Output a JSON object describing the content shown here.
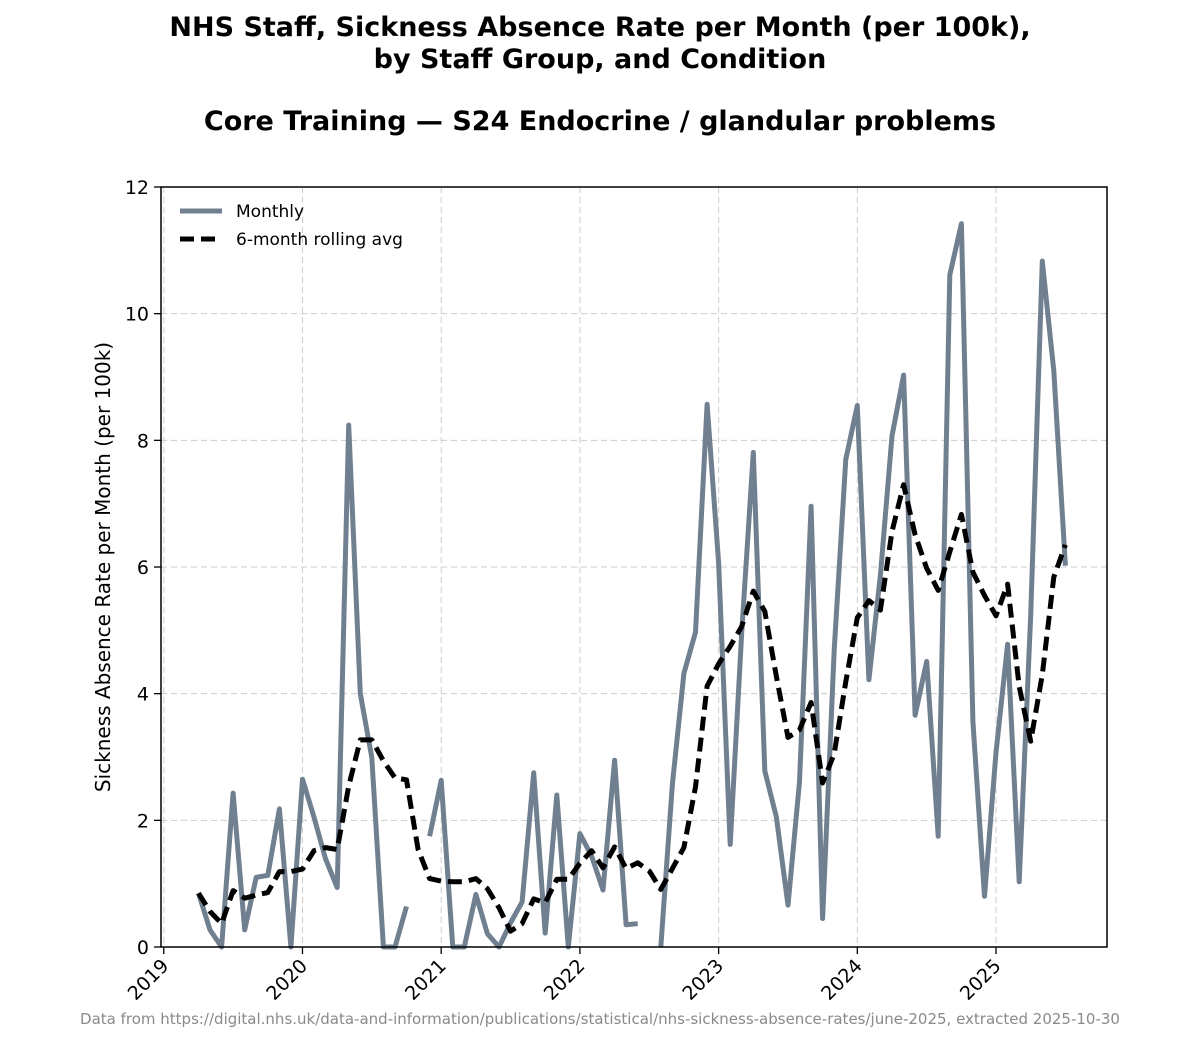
{
  "title_line1": "NHS Staff, Sickness Absence Rate per Month (per 100k),",
  "title_line2": "by Staff Group, and Condition",
  "subtitle": "Core Training — S24 Endocrine / glandular problems",
  "footer": "Data from https://digital.nhs.uk/data-and-information/publications/statistical/nhs-sickness-absence-rates/june-2025, extracted 2025-10-30",
  "chart_data": {
    "type": "line",
    "title": "NHS Staff, Sickness Absence Rate per Month (per 100k), by Staff Group, and Condition",
    "subtitle": "Core Training — S24 Endocrine / glandular problems",
    "xlabel": "",
    "ylabel": "Sickness Absence Rate per Month (per 100k)",
    "ylim": [
      0,
      12
    ],
    "yticks": [
      0,
      2,
      4,
      6,
      8,
      10,
      12
    ],
    "xlim": [
      2018.98,
      2025.8
    ],
    "xticks": [
      2019,
      2020,
      2021,
      2022,
      2023,
      2024,
      2025
    ],
    "xtick_labels": [
      "2019",
      "2020",
      "2021",
      "2022",
      "2023",
      "2024",
      "2025"
    ],
    "grid": true,
    "legend_position": "top-left",
    "start": "2019-04",
    "series": [
      {
        "name": "Monthly",
        "color": "#708090",
        "style": "solid",
        "values": [
          0.85,
          0.27,
          0.0,
          2.43,
          0.27,
          1.1,
          1.13,
          2.18,
          0.0,
          2.65,
          2.05,
          1.39,
          0.94,
          8.24,
          4.0,
          2.99,
          0.0,
          0.0,
          0.64,
          null,
          1.75,
          2.63,
          0.0,
          0.0,
          0.83,
          0.21,
          0.0,
          0.38,
          0.71,
          2.75,
          0.22,
          2.4,
          0.0,
          1.79,
          1.44,
          0.9,
          2.95,
          0.35,
          0.37,
          null,
          0.0,
          2.57,
          4.32,
          4.97,
          8.57,
          6.07,
          1.62,
          4.96,
          7.81,
          2.78,
          2.05,
          0.66,
          2.61,
          6.96,
          0.45,
          4.69,
          7.7,
          8.55,
          4.22,
          5.87,
          8.07,
          9.03,
          3.66,
          4.51,
          1.75,
          10.61,
          11.42,
          3.56,
          0.8,
          3.07,
          4.78,
          1.03,
          5.24,
          10.83,
          9.1,
          6.02
        ]
      },
      {
        "name": "6-month rolling avg",
        "color": "#000000",
        "style": "dashed",
        "values": [
          0.85,
          0.56,
          0.37,
          0.89,
          0.77,
          0.82,
          0.86,
          1.19,
          1.19,
          1.23,
          1.52,
          1.57,
          1.54,
          2.54,
          3.27,
          3.27,
          2.94,
          2.67,
          2.64,
          1.54,
          1.08,
          1.04,
          1.03,
          1.03,
          1.08,
          0.92,
          0.62,
          0.25,
          0.37,
          0.76,
          0.7,
          1.07,
          1.07,
          1.32,
          1.52,
          1.25,
          1.58,
          1.24,
          1.33,
          1.2,
          0.91,
          1.24,
          1.57,
          2.53,
          4.12,
          4.47,
          4.75,
          5.06,
          5.62,
          5.3,
          4.27,
          3.31,
          3.43,
          3.86,
          2.59,
          3.05,
          4.19,
          5.2,
          5.47,
          5.32,
          6.56,
          7.3,
          6.51,
          5.98,
          5.63,
          6.24,
          6.83,
          5.92,
          5.55,
          5.23,
          5.73,
          4.11,
          3.25,
          4.3,
          5.84,
          6.35
        ]
      }
    ]
  }
}
